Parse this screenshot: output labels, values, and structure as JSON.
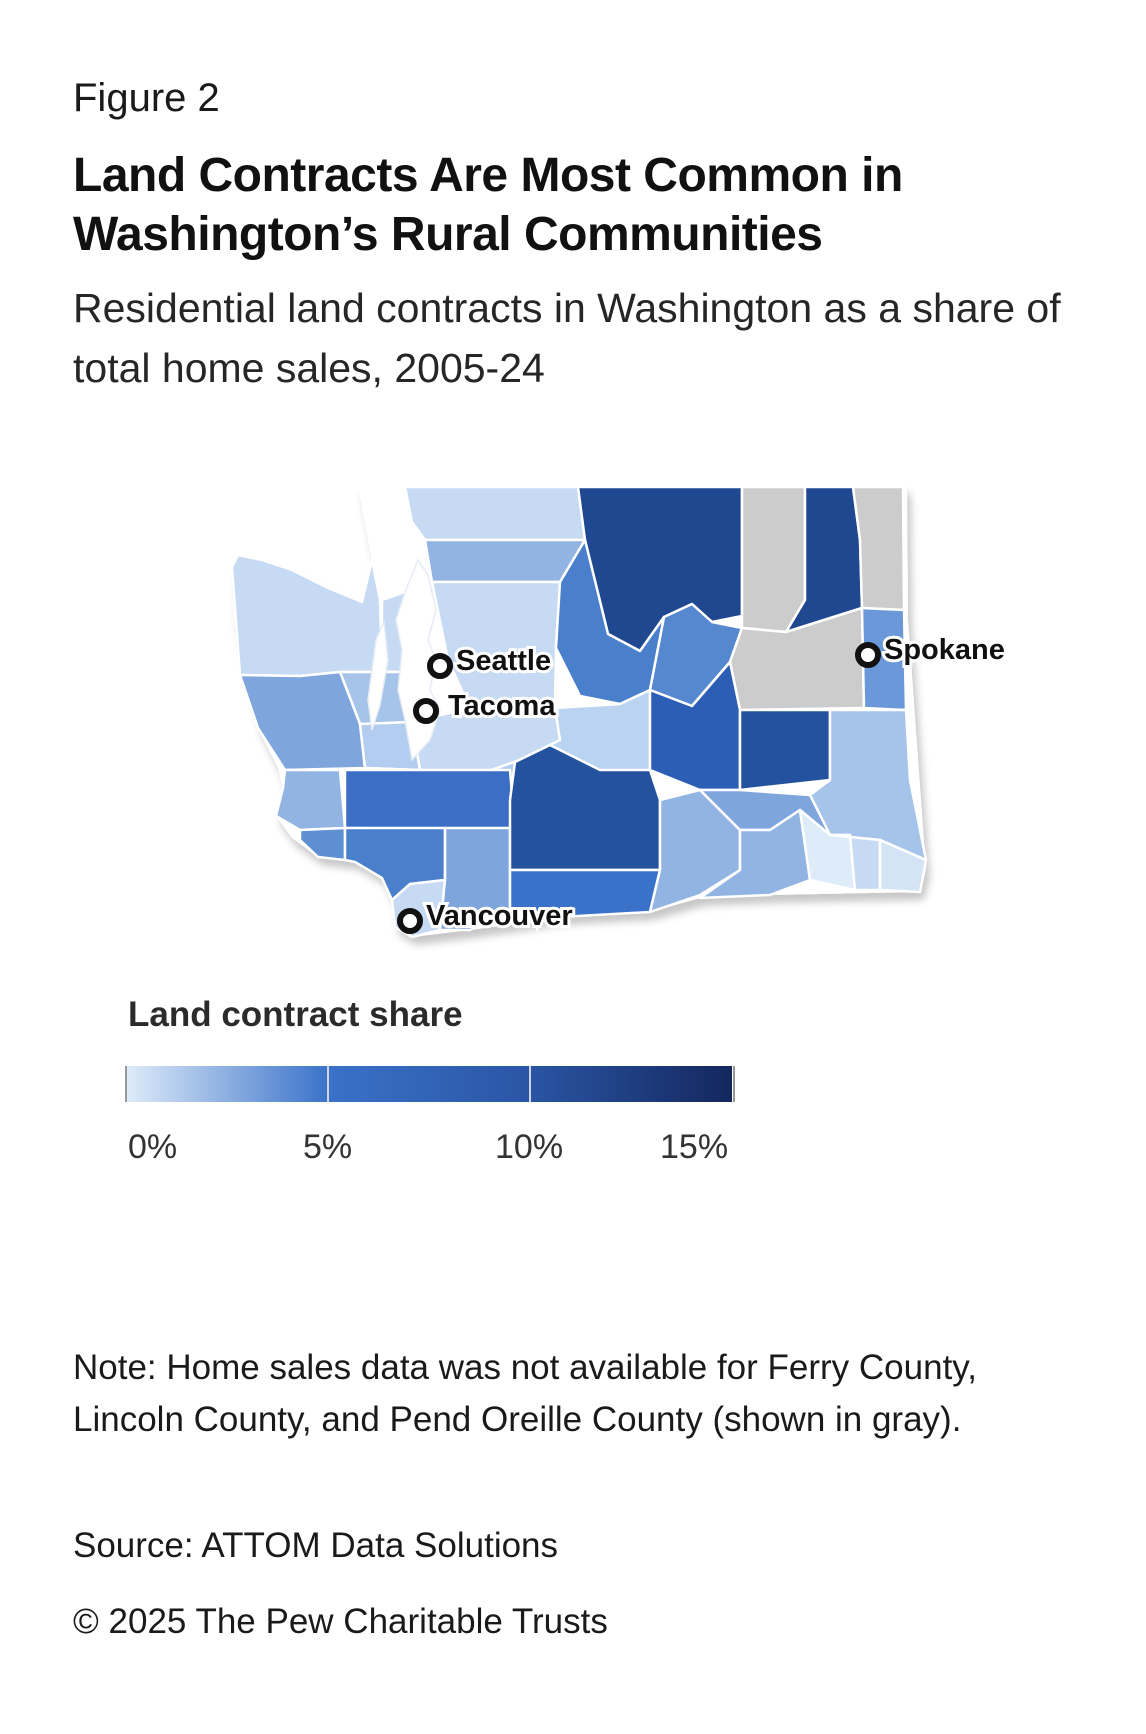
{
  "header": {
    "figure_label": "Figure 2",
    "title": "Land Contracts Are Most Common in Washington’s Rural Communities",
    "subtitle": "Residential land contracts in Washington as a share of total home sales, 2005-24"
  },
  "map": {
    "region": "Washington",
    "no_data_color": "#cccccc",
    "cities": [
      {
        "name": "Seattle"
      },
      {
        "name": "Tacoma"
      },
      {
        "name": "Spokane"
      },
      {
        "name": "Vancouver"
      }
    ]
  },
  "legend": {
    "title": "Land contract share",
    "ticks": [
      "0%",
      "5%",
      "10%",
      "15%"
    ],
    "colors": {
      "low": "#deebf9",
      "mid_low": "#3a72c9",
      "mid": "#2a55a4",
      "high": "#14275e"
    }
  },
  "footer": {
    "note": "Note: Home sales data was not available for Ferry County, Lincoln County, and Pend Oreille County (shown in gray).",
    "source": "Source: ATTOM Data Solutions",
    "copyright": "© 2025 The Pew Charitable Trusts"
  }
}
